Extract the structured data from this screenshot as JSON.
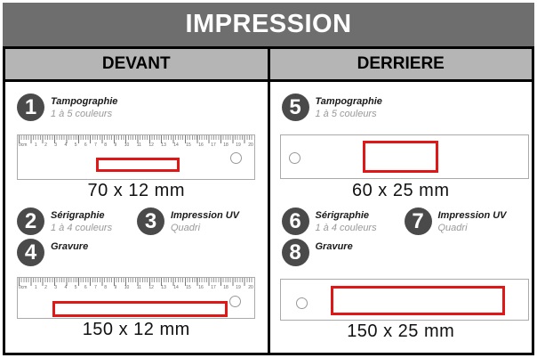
{
  "title": "IMPRESSION",
  "front": {
    "header": "DEVANT",
    "methods": [
      {
        "num": "1",
        "name": "Tampographie",
        "sub": "1 à 5 couleurs"
      },
      {
        "num": "2",
        "name": "Sérigraphie",
        "sub": "1 à 4 couleurs"
      },
      {
        "num": "3",
        "name": "Impression UV",
        "sub": "Quadri"
      },
      {
        "num": "4",
        "name": "Gravure",
        "sub": ""
      }
    ],
    "zones": [
      {
        "dimension": "70 x 12 mm"
      },
      {
        "dimension": "150 x 12 mm"
      }
    ]
  },
  "back": {
    "header": "DERRIERE",
    "methods": [
      {
        "num": "5",
        "name": "Tampographie",
        "sub": "1 à 5 couleurs"
      },
      {
        "num": "6",
        "name": "Sérigraphie",
        "sub": "1 à 4 couleurs"
      },
      {
        "num": "7",
        "name": "Impression UV",
        "sub": "Quadri"
      },
      {
        "num": "8",
        "name": "Gravure",
        "sub": ""
      }
    ],
    "zones": [
      {
        "dimension": "60 x 25 mm"
      },
      {
        "dimension": "150 x 25 mm"
      }
    ]
  },
  "ruler": {
    "tick_labels": [
      "0cm",
      "1",
      "2",
      "3",
      "4",
      "5",
      "6",
      "7",
      "8",
      "9",
      "10",
      "11",
      "12",
      "13",
      "14",
      "15",
      "16",
      "17",
      "18",
      "19",
      "20"
    ]
  },
  "colors": {
    "header_bg": "#6e6e6e",
    "subheader_bg": "#b5b5b5",
    "badge_bg": "#4a4a4a",
    "print_zone_red": "#e01717",
    "ruler_border": "#aaaaaa"
  }
}
